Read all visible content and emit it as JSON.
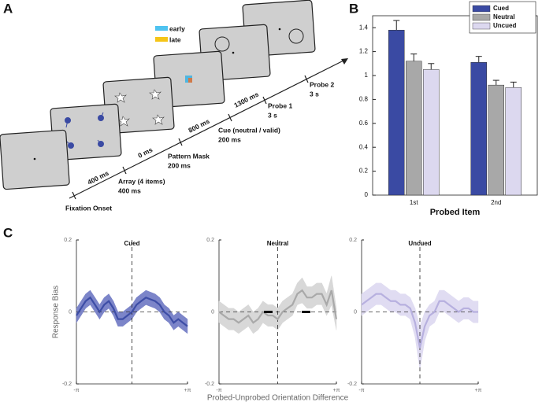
{
  "panel_labels": [
    "A",
    "B",
    "C"
  ],
  "diagram": {
    "legend": [
      "early",
      "late"
    ],
    "intervals": [
      "400 ms",
      "0 ms",
      "800 ms",
      "1300 ms"
    ],
    "events": [
      [
        "Fixation Onset"
      ],
      [
        "Array (4 items)",
        "400 ms"
      ],
      [
        "Pattern Mask",
        "200 ms"
      ],
      [
        "Cue (neutral / valid)",
        "200 ms"
      ],
      [
        "Probe 1",
        "3 s"
      ],
      [
        "Probe 2",
        "3 s"
      ]
    ]
  },
  "chart_data": [
    {
      "type": "bar",
      "xlabel": "Probed Item",
      "categories": [
        "1st",
        "2nd"
      ],
      "series": [
        {
          "name": "Cued",
          "color": "#3a4aa3",
          "values": [
            1.38,
            1.11
          ],
          "errors": [
            0.08,
            0.05
          ]
        },
        {
          "name": "Neutral",
          "color": "#a8a8a8",
          "values": [
            1.12,
            0.92
          ],
          "errors": [
            0.06,
            0.04
          ]
        },
        {
          "name": "Uncued",
          "color": "#dcd8ef",
          "values": [
            1.05,
            0.9
          ],
          "errors": [
            0.05,
            0.045
          ]
        }
      ],
      "ylim": [
        0,
        1.5
      ],
      "yticks": [
        0,
        0.2,
        0.4,
        0.6,
        0.8,
        1,
        1.2,
        1.4
      ],
      "legend": "top-right"
    },
    {
      "type": "line",
      "title": "Cued",
      "ylabel": "Response Bias",
      "x": [
        -3.14,
        -2.88,
        -2.62,
        -2.36,
        -2.09,
        -1.83,
        -1.57,
        -1.31,
        -1.05,
        -0.79,
        -0.52,
        -0.26,
        0,
        0.26,
        0.52,
        0.79,
        1.05,
        1.31,
        1.57,
        1.83,
        2.09,
        2.36,
        2.62,
        2.88,
        3.14
      ],
      "series": [
        {
          "color": "#3d4da6",
          "band_color": "#7c85c9",
          "values": [
            -0.01,
            0.01,
            0.03,
            0.04,
            0.02,
            0,
            0.02,
            0.03,
            0.01,
            -0.02,
            -0.02,
            -0.01,
            0,
            0.02,
            0.03,
            0.04,
            0.035,
            0.03,
            0.02,
            0,
            -0.01,
            -0.03,
            -0.02,
            -0.03,
            -0.04
          ],
          "error": [
            0.02,
            0.02,
            0.02,
            0.02,
            0.02,
            0.02,
            0.02,
            0.02,
            0.02,
            0.02,
            0.02,
            0.02,
            0.02,
            0.02,
            0.02,
            0.02,
            0.02,
            0.02,
            0.02,
            0.02,
            0.02,
            0.02,
            0.02,
            0.02,
            0.02
          ]
        }
      ],
      "xlim": [
        -3.14159,
        3.14159
      ],
      "xticks": [
        {
          "value": -3.14159,
          "label": "-π"
        },
        {
          "value": 3.14159,
          "label": "+π"
        }
      ],
      "ylim": [
        -0.2,
        0.2
      ],
      "yticks": [
        -0.2,
        0,
        0.2
      ]
    },
    {
      "type": "line",
      "title": "Neutral",
      "xlabel": "Probed-Unprobed Orientation Difference",
      "x": [
        -3.14,
        -2.88,
        -2.62,
        -2.36,
        -2.09,
        -1.83,
        -1.57,
        -1.31,
        -1.05,
        -0.79,
        -0.52,
        -0.26,
        0,
        0.26,
        0.52,
        0.79,
        1.05,
        1.31,
        1.57,
        1.83,
        2.09,
        2.36,
        2.62,
        2.88,
        3.14
      ],
      "series": [
        {
          "color": "#a9a9a9",
          "band_color": "#d8d8d8",
          "values": [
            0,
            -0.01,
            -0.02,
            -0.02,
            -0.03,
            -0.02,
            -0.01,
            -0.03,
            -0.02,
            0,
            -0.01,
            -0.01,
            -0.02,
            0,
            0.01,
            0.02,
            0.05,
            0.06,
            0.04,
            0.04,
            0.05,
            0.05,
            0.02,
            0.06,
            -0.02
          ],
          "error": [
            0.03,
            0.03,
            0.03,
            0.03,
            0.03,
            0.03,
            0.03,
            0.03,
            0.03,
            0.03,
            0.03,
            0.03,
            0.03,
            0.03,
            0.03,
            0.03,
            0.03,
            0.035,
            0.03,
            0.03,
            0.03,
            0.03,
            0.03,
            0.04,
            0.03
          ]
        }
      ],
      "xlim": [
        -3.14159,
        3.14159
      ],
      "xticks": [
        {
          "value": -3.14159,
          "label": "-π"
        },
        {
          "value": 3.14159,
          "label": "+π"
        }
      ],
      "ylim": [
        -0.2,
        0.2
      ],
      "yticks": [
        -0.2,
        0,
        0.2
      ]
    },
    {
      "type": "line",
      "title": "Uncued",
      "x": [
        -3.14,
        -2.88,
        -2.62,
        -2.36,
        -2.09,
        -1.83,
        -1.57,
        -1.31,
        -1.05,
        -0.79,
        -0.52,
        -0.26,
        0,
        0.26,
        0.52,
        0.79,
        1.05,
        1.31,
        1.57,
        1.83,
        2.09,
        2.36,
        2.62,
        2.88,
        3.14
      ],
      "series": [
        {
          "color": "#b7b0df",
          "band_color": "#e0dcf2",
          "values": [
            0.02,
            0.03,
            0.04,
            0.05,
            0.05,
            0.04,
            0.03,
            0.03,
            0.02,
            0.02,
            0.01,
            -0.03,
            -0.1,
            -0.04,
            -0.01,
            0,
            0.03,
            0.03,
            0.02,
            0.01,
            0,
            0.01,
            0.01,
            0,
            0
          ],
          "error": [
            0.03,
            0.03,
            0.03,
            0.03,
            0.03,
            0.03,
            0.03,
            0.03,
            0.03,
            0.03,
            0.03,
            0.04,
            0.06,
            0.04,
            0.03,
            0.03,
            0.03,
            0.03,
            0.03,
            0.03,
            0.03,
            0.03,
            0.03,
            0.03,
            0.03
          ]
        }
      ],
      "xlim": [
        -3.14159,
        3.14159
      ],
      "xticks": [
        {
          "value": -3.14159,
          "label": "-π"
        },
        {
          "value": 3.14159,
          "label": "+π"
        }
      ],
      "ylim": [
        -0.2,
        0.2
      ],
      "yticks": [
        -0.2,
        0,
        0.2
      ]
    }
  ]
}
